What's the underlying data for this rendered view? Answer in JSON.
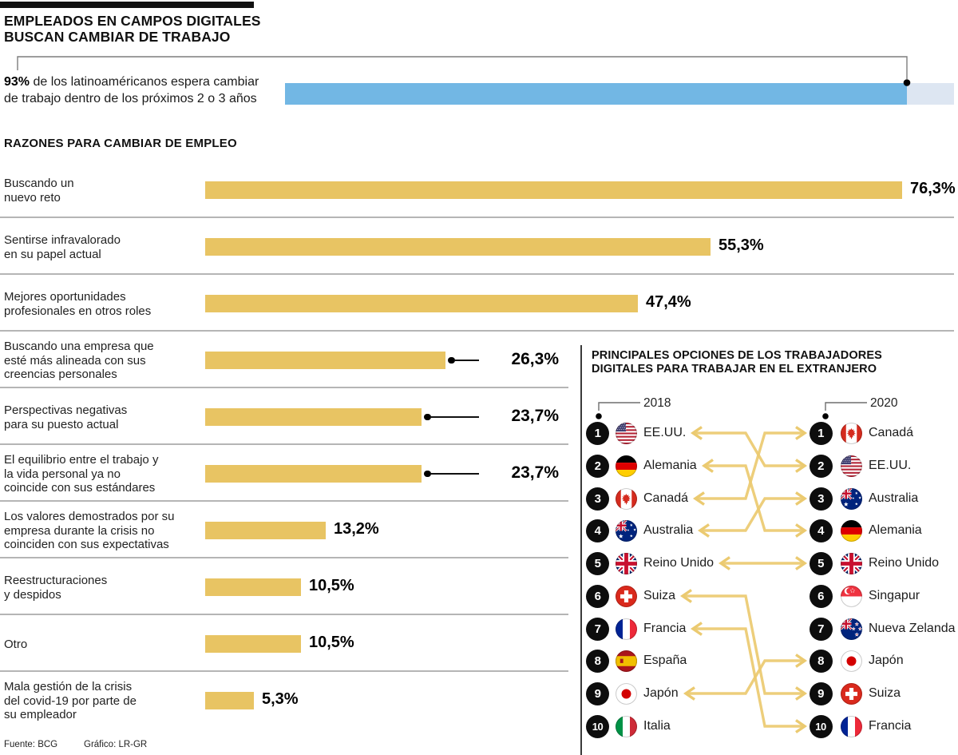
{
  "colors": {
    "bar_gold": "#e8c463",
    "arrow_gold": "#ebca70",
    "stat_blue": "#72b7e4",
    "stat_track": "#dde6f2",
    "separator": "#b5b5b5",
    "badge_black": "#0d0d0d"
  },
  "header": {
    "title_line1": "EMPLEADOS EN CAMPOS DIGITALES",
    "title_line2": "BUSCAN CAMBIAR DE TRABAJO",
    "stat": {
      "value": "93%",
      "text_line1": " de los latinoaméricanos espera cambiar",
      "text_line2": "de trabajo dentro de los próximos 2 o 3 años",
      "percent": 93
    }
  },
  "reasons_chart": {
    "title": "RAZONES PARA CAMBIAR DE EMPLEO",
    "rows": [
      {
        "label_lines": [
          "Buscando un",
          "nuevo reto"
        ],
        "value": 76.3,
        "value_label": "76,3%",
        "callout": false
      },
      {
        "label_lines": [
          "Sentirse infravalorado",
          "en su papel actual"
        ],
        "value": 55.3,
        "value_label": "55,3%",
        "callout": false
      },
      {
        "label_lines": [
          "Mejores oportunidades",
          "profesionales en otros roles"
        ],
        "value": 47.4,
        "value_label": "47,4%",
        "callout": false
      },
      {
        "label_lines": [
          "Buscando una empresa que",
          "esté más alineada con sus",
          "creencias personales"
        ],
        "value": 26.3,
        "value_label": "26,3%",
        "callout": true
      },
      {
        "label_lines": [
          "Perspectivas negativas",
          "para su puesto actual"
        ],
        "value": 23.7,
        "value_label": "23,7%",
        "callout": true
      },
      {
        "label_lines": [
          "El equilibrio entre el trabajo y",
          "la vida personal ya no",
          "coincide con sus estándares"
        ],
        "value": 23.7,
        "value_label": "23,7%",
        "callout": true
      },
      {
        "label_lines": [
          "Los valores demostrados por su",
          "empresa durante la crisis no",
          "coinciden con sus expectativas"
        ],
        "value": 13.2,
        "value_label": "13,2%",
        "callout": false
      },
      {
        "label_lines": [
          "Reestructuraciones",
          "y despidos"
        ],
        "value": 10.5,
        "value_label": "10,5%",
        "callout": false
      },
      {
        "label_lines": [
          "Otro"
        ],
        "value": 10.5,
        "value_label": "10,5%",
        "callout": false
      },
      {
        "label_lines": [
          "Mala gestión de la crisis",
          "del covid-19 por parte de",
          "su empleador"
        ],
        "value": 5.3,
        "value_label": "5,3%",
        "callout": false
      }
    ]
  },
  "ranking_panel": {
    "title_line1": "PRINCIPALES OPCIONES DE LOS TRABAJADORES",
    "title_line2": "DIGITALES PARA TRABAJAR EN EL EXTRANJERO",
    "year_left": "2018",
    "year_right": "2020",
    "list_2018": [
      {
        "rank": "1",
        "name": "EE.UU.",
        "flag": "us"
      },
      {
        "rank": "2",
        "name": "Alemania",
        "flag": "de"
      },
      {
        "rank": "3",
        "name": "Canadá",
        "flag": "ca"
      },
      {
        "rank": "4",
        "name": "Australia",
        "flag": "au"
      },
      {
        "rank": "5",
        "name": "Reino Unido",
        "flag": "gb"
      },
      {
        "rank": "6",
        "name": "Suiza",
        "flag": "ch"
      },
      {
        "rank": "7",
        "name": "Francia",
        "flag": "fr"
      },
      {
        "rank": "8",
        "name": "España",
        "flag": "es"
      },
      {
        "rank": "9",
        "name": "Japón",
        "flag": "jp"
      },
      {
        "rank": "10",
        "name": "Italia",
        "flag": "it"
      }
    ],
    "list_2020": [
      {
        "rank": "1",
        "name": "Canadá",
        "flag": "ca"
      },
      {
        "rank": "2",
        "name": "EE.UU.",
        "flag": "us"
      },
      {
        "rank": "3",
        "name": "Australia",
        "flag": "au"
      },
      {
        "rank": "4",
        "name": "Alemania",
        "flag": "de"
      },
      {
        "rank": "5",
        "name": "Reino Unido",
        "flag": "gb"
      },
      {
        "rank": "6",
        "name": "Singapur",
        "flag": "sg"
      },
      {
        "rank": "7",
        "name": "Nueva Zelanda",
        "flag": "nz"
      },
      {
        "rank": "8",
        "name": "Japón",
        "flag": "jp"
      },
      {
        "rank": "9",
        "name": "Suiza",
        "flag": "ch"
      },
      {
        "rank": "10",
        "name": "Francia",
        "flag": "fr"
      }
    ],
    "links": [
      {
        "from": 1,
        "to": 2
      },
      {
        "from": 2,
        "to": 4
      },
      {
        "from": 3,
        "to": 1
      },
      {
        "from": 4,
        "to": 3
      },
      {
        "from": 5,
        "to": 5
      },
      {
        "from": 6,
        "to": 9
      },
      {
        "from": 7,
        "to": 10
      },
      {
        "from": 9,
        "to": 8
      }
    ]
  },
  "footer": {
    "source_label": "Fuente: BCG",
    "credit_label": "Gráfico: LR-GR"
  },
  "chart_data": [
    {
      "type": "bar",
      "title": "EMPLEADOS EN CAMPOS DIGITALES BUSCAN CAMBIAR DE TRABAJO",
      "categories": [
        "Latinoamericanos que esperan cambiar de trabajo dentro de los próximos 2 o 3 años"
      ],
      "values": [
        93
      ],
      "xlim": [
        0,
        100
      ],
      "unit": "%",
      "orientation": "horizontal"
    },
    {
      "type": "bar",
      "title": "RAZONES PARA CAMBIAR DE EMPLEO",
      "categories": [
        "Buscando un nuevo reto",
        "Sentirse infravalorado en su papel actual",
        "Mejores oportunidades profesionales en otros roles",
        "Buscando una empresa que esté más alineada con sus creencias personales",
        "Perspectivas negativas para su puesto actual",
        "El equilibrio entre el trabajo y la vida personal ya no coincide con sus estándares",
        "Los valores demostrados por su empresa durante la crisis no coinciden con sus expectativas",
        "Reestructuraciones y despidos",
        "Otro",
        "Mala gestión de la crisis del covid-19 por parte de su empleador"
      ],
      "values": [
        76.3,
        55.3,
        47.4,
        26.3,
        23.7,
        23.7,
        13.2,
        10.5,
        10.5,
        5.3
      ],
      "unit": "%",
      "orientation": "horizontal",
      "xlim": [
        0,
        80
      ]
    },
    {
      "type": "table",
      "title": "PRINCIPALES OPCIONES DE LOS TRABAJADORES DIGITALES PARA TRABAJAR EN EL EXTRANJERO",
      "columns": [
        "2018",
        "2020"
      ],
      "rows": [
        [
          "EE.UU.",
          "Canadá"
        ],
        [
          "Alemania",
          "EE.UU."
        ],
        [
          "Canadá",
          "Australia"
        ],
        [
          "Australia",
          "Alemania"
        ],
        [
          "Reino Unido",
          "Reino Unido"
        ],
        [
          "Suiza",
          "Singapur"
        ],
        [
          "Francia",
          "Nueva Zelanda"
        ],
        [
          "España",
          "Japón"
        ],
        [
          "Japón",
          "Suiza"
        ],
        [
          "Italia",
          "Francia"
        ]
      ]
    }
  ]
}
